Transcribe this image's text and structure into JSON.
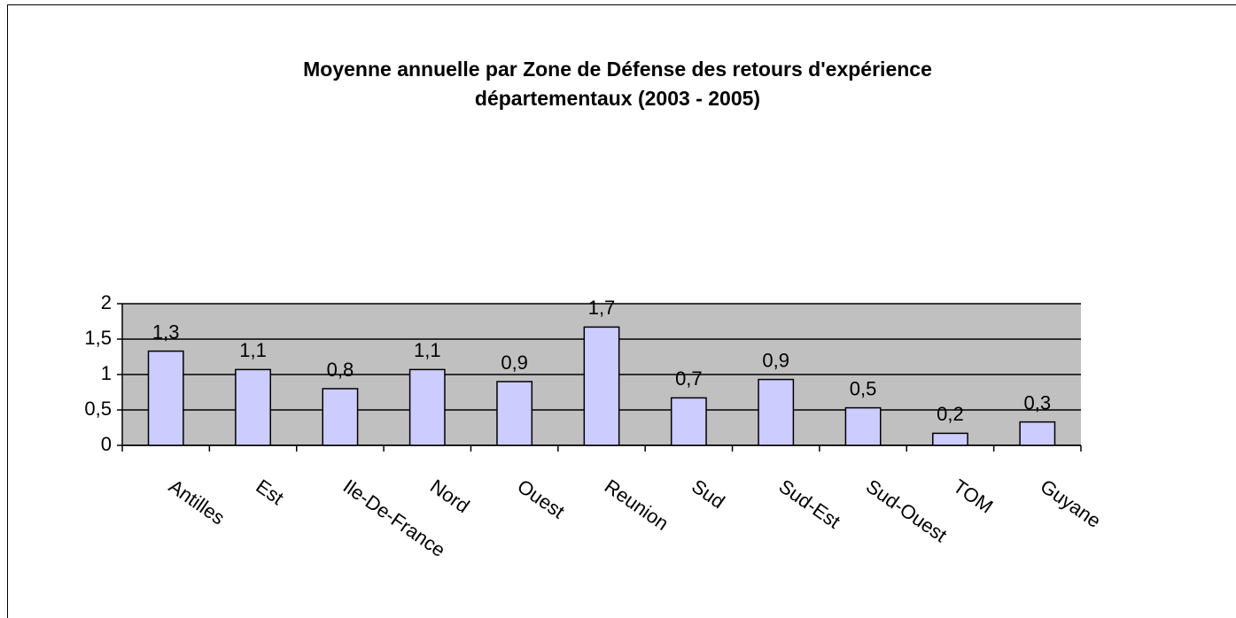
{
  "chart_data": {
    "type": "bar",
    "title": [
      "Moyenne annuelle par Zone de Défense des retours d'expérience",
      "départementaux (2003 - 2005)"
    ],
    "categories": [
      "Antilles",
      "Est",
      "Ile-De-France",
      "Nord",
      "Ouest",
      "Reunion",
      "Sud",
      "Sud-Est",
      "Sud-Ouest",
      "TOM",
      "Guyane"
    ],
    "values": [
      1.33,
      1.07,
      0.8,
      1.07,
      0.9,
      1.67,
      0.67,
      0.93,
      0.53,
      0.17,
      0.33
    ],
    "value_labels": [
      "1,3",
      "1,1",
      "0,8",
      "1,1",
      "0,9",
      "1,7",
      "0,7",
      "0,9",
      "0,5",
      "0,2",
      "0,3"
    ],
    "color": "#ccccff",
    "ylim": [
      0,
      2
    ],
    "yticks": [
      0,
      {
        "value": 0.5,
        "label": "0,5"
      },
      1,
      {
        "value": 1.5,
        "label": "1,5"
      },
      2
    ],
    "grid": true
  }
}
